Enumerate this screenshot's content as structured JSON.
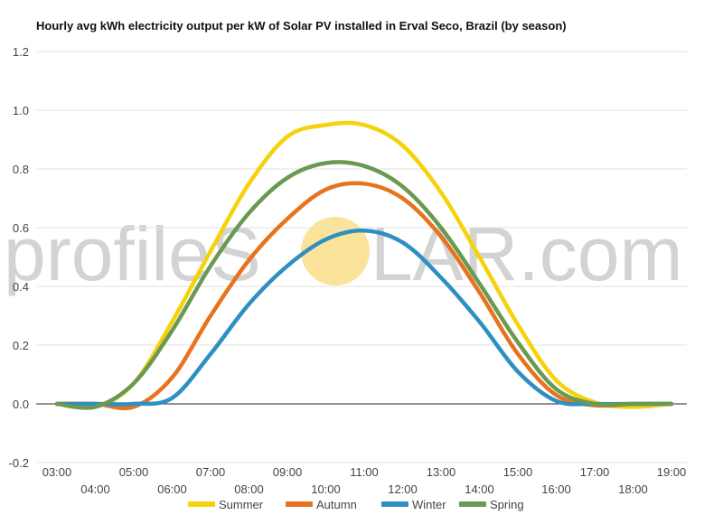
{
  "watermark": {
    "left": "profileS",
    "right": "LAR.com"
  },
  "colors": {
    "Summer": "#f5d20a",
    "Autumn": "#e8731e",
    "Winter": "#2e90c0",
    "Spring": "#6a9a52",
    "grid": "#e2e2e2",
    "zero": "#222222",
    "sun": "#fbe49a"
  },
  "chart_data": {
    "type": "line",
    "title": "Hourly avg kWh electricity output per kW of Solar PV installed in Erval Seco, Brazil (by season)",
    "x": [
      "03:00",
      "04:00",
      "05:00",
      "06:00",
      "07:00",
      "08:00",
      "09:00",
      "10:00",
      "11:00",
      "12:00",
      "13:00",
      "14:00",
      "15:00",
      "16:00",
      "17:00",
      "18:00",
      "19:00"
    ],
    "ylim": [
      -0.2,
      1.2
    ],
    "yticks": [
      -0.2,
      0.0,
      0.2,
      0.4,
      0.6,
      0.8,
      1.0,
      1.2
    ],
    "ytick_labels": [
      "-0.2",
      "0.0",
      "0.2",
      "0.4",
      "0.6",
      "0.8",
      "1.0",
      "1.2"
    ],
    "grid": true,
    "legend": "bottom",
    "series": [
      {
        "name": "Summer",
        "values": [
          0.0,
          -0.01,
          0.07,
          0.28,
          0.52,
          0.75,
          0.91,
          0.95,
          0.95,
          0.88,
          0.72,
          0.5,
          0.27,
          0.08,
          0.005,
          -0.01,
          0.0
        ]
      },
      {
        "name": "Autumn",
        "values": [
          0.0,
          0.0,
          -0.01,
          0.09,
          0.3,
          0.49,
          0.63,
          0.73,
          0.75,
          0.7,
          0.57,
          0.38,
          0.17,
          0.03,
          -0.005,
          0.0,
          0.0
        ]
      },
      {
        "name": "Winter",
        "values": [
          0.0,
          0.0,
          0.0,
          0.02,
          0.17,
          0.34,
          0.47,
          0.56,
          0.59,
          0.55,
          0.43,
          0.28,
          0.11,
          0.01,
          0.0,
          0.0,
          0.0
        ]
      },
      {
        "name": "Spring",
        "values": [
          0.0,
          -0.01,
          0.07,
          0.25,
          0.47,
          0.65,
          0.77,
          0.82,
          0.81,
          0.74,
          0.6,
          0.41,
          0.21,
          0.05,
          0.0,
          0.0,
          0.0
        ]
      }
    ]
  }
}
